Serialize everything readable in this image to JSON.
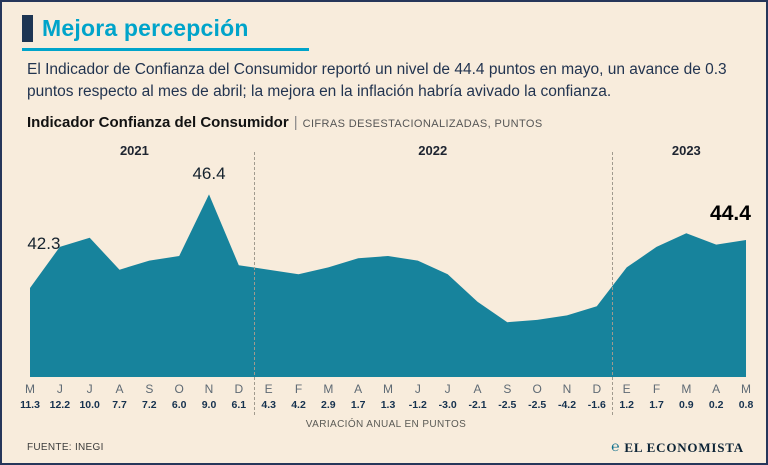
{
  "page": {
    "title": "Mejora percepción",
    "intro": "El Indicador de Confianza del Consumidor reportó un nivel de 44.4 puntos en mayo, un avance de 0.3 puntos respecto al mes de abril; la mejora en la inflación habría avivado la confianza.",
    "source": "FUENTE: INEGI",
    "brand": "EL ECONOMISTA",
    "brand_icon": "℮"
  },
  "chart_data": {
    "type": "area",
    "title": "Indicador Confianza del Consumidor",
    "separator": "|",
    "subtitle": "CIFRAS DESESTACIONALIZADAS, PUNTOS",
    "xlabel": "VARIACIÓN ANUAL EN PUNTOS",
    "legend": "none",
    "grid": "off",
    "ylim": [
      38.4,
      47.6
    ],
    "years": [
      {
        "label": "2021",
        "from": 0,
        "to": 7
      },
      {
        "label": "2022",
        "from": 8,
        "to": 19
      },
      {
        "label": "2023",
        "from": 20,
        "to": 24
      }
    ],
    "months": [
      "M",
      "J",
      "J",
      "A",
      "S",
      "O",
      "N",
      "D",
      "E",
      "F",
      "M",
      "A",
      "M",
      "J",
      "J",
      "A",
      "S",
      "O",
      "N",
      "D",
      "E",
      "F",
      "M",
      "A",
      "M"
    ],
    "index_values": [
      42.3,
      44.1,
      44.5,
      43.1,
      43.5,
      43.7,
      46.4,
      43.3,
      43.1,
      42.9,
      43.2,
      43.6,
      43.7,
      43.5,
      42.9,
      41.7,
      40.8,
      40.9,
      41.1,
      41.5,
      43.2,
      44.1,
      44.7,
      44.2,
      44.4
    ],
    "annual_variation": [
      11.3,
      12.2,
      10.0,
      7.7,
      7.2,
      6.0,
      9.0,
      6.1,
      4.3,
      4.2,
      2.9,
      1.7,
      1.3,
      -1.2,
      -3.0,
      -2.1,
      -2.5,
      -2.5,
      -4.2,
      -1.6,
      1.2,
      1.7,
      0.9,
      0.2,
      0.8
    ],
    "annotations": [
      {
        "text": "42.3",
        "index": 0,
        "size": "normal",
        "align": "left"
      },
      {
        "text": "46.4",
        "index": 6,
        "size": "normal",
        "align": "center"
      },
      {
        "text": "44.4",
        "index": 24,
        "size": "large",
        "align": "right"
      }
    ],
    "colors": {
      "area": "#17839c",
      "accent": "#00a4ca",
      "navy": "#1e3553",
      "background": "#f8ecdc"
    }
  }
}
